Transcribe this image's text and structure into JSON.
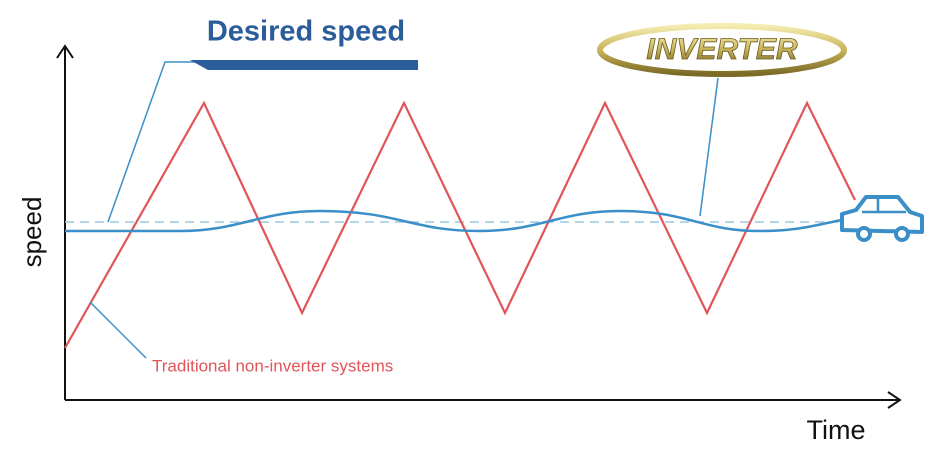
{
  "labels": {
    "desired": "Desired speed",
    "inverter": "INVERTER",
    "y_axis": "speed",
    "x_axis": "Time",
    "traditional": "Traditional non-inverter systems"
  }
}
